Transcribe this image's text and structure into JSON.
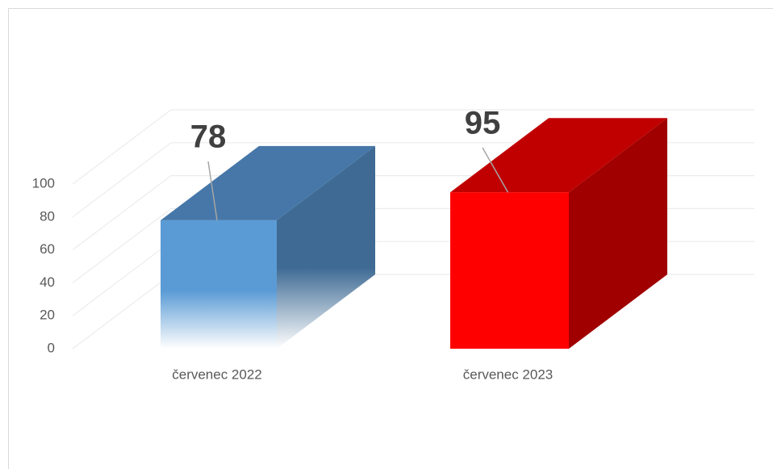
{
  "chart_data": {
    "type": "bar3d",
    "categories": [
      "červenec 2022",
      "červenec 2023"
    ],
    "values": [
      78,
      95
    ],
    "colors": [
      "#5b9bd5",
      "#ff0000"
    ],
    "ylim": [
      0,
      100
    ],
    "yticks": [
      0,
      20,
      40,
      60,
      80,
      100
    ],
    "grid": true
  }
}
